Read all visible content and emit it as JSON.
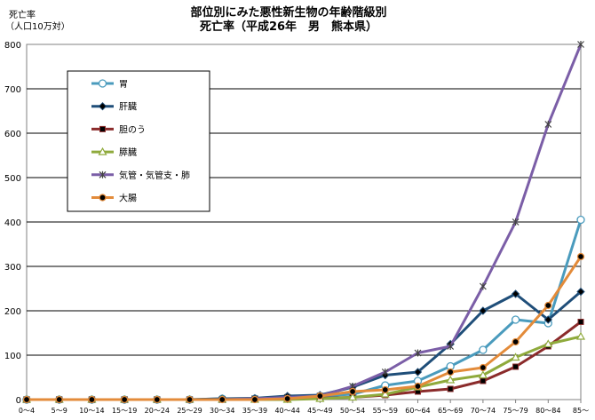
{
  "chart_data": {
    "type": "line",
    "title": "部位別にみた悪性新生物の年齢階級別",
    "subtitle": "死亡率（平成26年　男　熊本県）",
    "ylabel_line1": "死亡率",
    "ylabel_line2": "（人口10万対）",
    "ylim": [
      0,
      800
    ],
    "yticks": [
      0,
      100,
      200,
      300,
      400,
      500,
      600,
      700,
      800
    ],
    "grid": true,
    "legend_position": "top-left",
    "categories": [
      "0～4",
      "5～9",
      "10～14",
      "15～19",
      "20～24",
      "25～29",
      "30～34",
      "35～39",
      "40～44",
      "45～49",
      "50～54",
      "55～59",
      "60～64",
      "65～69",
      "70～74",
      "75～79",
      "80～84",
      "85～"
    ],
    "series": [
      {
        "name": "胃",
        "color": "#4a9bbd",
        "marker": "circle-open",
        "values": [
          0,
          0,
          0,
          0,
          0,
          0,
          2,
          2,
          5,
          8,
          12,
          32,
          42,
          75,
          112,
          180,
          172,
          405
        ]
      },
      {
        "name": "肝臓",
        "color": "#1f4e79",
        "marker": "diamond",
        "values": [
          0,
          0,
          0,
          0,
          0,
          0,
          2,
          3,
          8,
          10,
          28,
          55,
          62,
          125,
          200,
          238,
          180,
          243
        ]
      },
      {
        "name": "胆のう",
        "color": "#8b2b2b",
        "marker": "square",
        "values": [
          0,
          0,
          0,
          0,
          0,
          0,
          0,
          0,
          2,
          3,
          5,
          10,
          18,
          24,
          42,
          74,
          120,
          175
        ]
      },
      {
        "name": "膵臓",
        "color": "#8faa3c",
        "marker": "triangle-open",
        "values": [
          0,
          0,
          0,
          0,
          0,
          0,
          0,
          0,
          0,
          2,
          5,
          12,
          28,
          44,
          55,
          95,
          125,
          142
        ]
      },
      {
        "name": "気管・気管支・肺",
        "color": "#7b5ea7",
        "marker": "x",
        "values": [
          0,
          0,
          0,
          0,
          0,
          0,
          0,
          2,
          5,
          8,
          30,
          62,
          105,
          120,
          255,
          400,
          620,
          800
        ]
      },
      {
        "name": "大腸",
        "color": "#e38b3a",
        "marker": "circle-filled",
        "values": [
          0,
          0,
          0,
          0,
          0,
          0,
          0,
          0,
          2,
          8,
          18,
          22,
          30,
          62,
          72,
          130,
          212,
          322
        ]
      }
    ]
  }
}
